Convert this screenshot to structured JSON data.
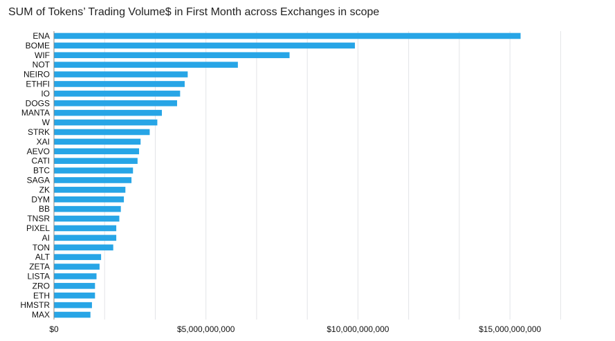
{
  "chart_data": {
    "type": "bar",
    "orientation": "horizontal",
    "title": "SUM of Tokens’ Trading Volume$ in First Month across Exchanges in scope",
    "xlabel": "",
    "ylabel": "",
    "categories": [
      "ENA",
      "BOME",
      "WIF",
      "NOT",
      "NEIRO",
      "ETHFI",
      "IO",
      "DOGS",
      "MANTA",
      "W",
      "STRK",
      "XAI",
      "AEVO",
      "CATI",
      "BTC",
      "SAGA",
      "ZK",
      "DYM",
      "BB",
      "TNSR",
      "PIXEL",
      "AI",
      "TON",
      "ALT",
      "ZETA",
      "LISTA",
      "ZRO",
      "ETH",
      "HMSTR",
      "MAX"
    ],
    "values": [
      15350000000,
      9900000000,
      7750000000,
      6050000000,
      4400000000,
      4300000000,
      4150000000,
      4050000000,
      3550000000,
      3400000000,
      3150000000,
      2850000000,
      2800000000,
      2750000000,
      2600000000,
      2550000000,
      2350000000,
      2300000000,
      2200000000,
      2150000000,
      2050000000,
      2050000000,
      1950000000,
      1550000000,
      1500000000,
      1400000000,
      1350000000,
      1350000000,
      1250000000,
      1200000000
    ],
    "xlim": [
      0,
      17500000000
    ],
    "tick_values": [
      0,
      5000000000,
      10000000000,
      15000000000
    ],
    "tick_labels": [
      "$0",
      "$5,000,000,000",
      "$10,000,000,000",
      "$15,000,000,000"
    ],
    "minor_gridline_step": 1666666667,
    "grid": true,
    "legend": "none",
    "bar_color": "#27a5e6",
    "grid_color": "#e2e4e7",
    "axis_color": "#888888"
  }
}
